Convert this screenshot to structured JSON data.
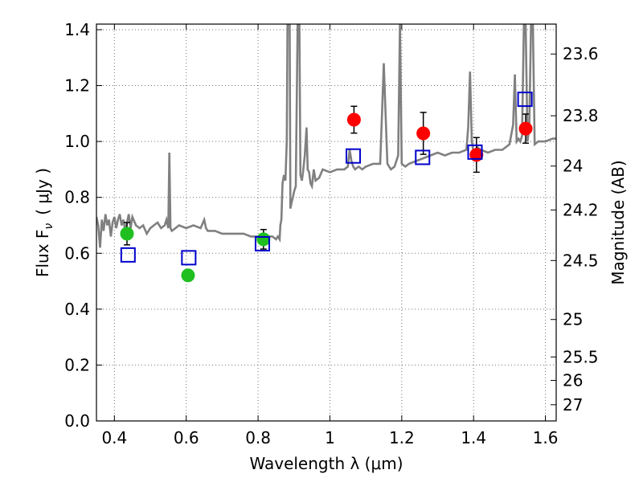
{
  "chart_data": {
    "type": "scatter",
    "xlabel": "Wavelength  λ (μm)",
    "ylabel": "Flux  F",
    "ylabel_subscript": "ν",
    "ylabel_units": "( μJy )",
    "y2label": "Magnitude (AB)",
    "xlim": [
      0.35,
      1.63
    ],
    "ylim": [
      0.0,
      1.42
    ],
    "x_ticks": [
      0.4,
      0.6,
      0.8,
      1.0,
      1.2,
      1.4,
      1.6
    ],
    "x_tick_labels": [
      "0.4",
      "0.6",
      "0.8",
      "1",
      "1.2",
      "1.4",
      "1.6"
    ],
    "y_ticks": [
      0.0,
      0.2,
      0.4,
      0.6,
      0.8,
      1.0,
      1.2,
      1.4
    ],
    "y_tick_labels": [
      "0.0",
      "0.2",
      "0.4",
      "0.6",
      "0.8",
      "1.0",
      "1.2",
      "1.4"
    ],
    "y2_ticks": [
      {
        "label": "23.6",
        "flux": 1.313
      },
      {
        "label": "23.8",
        "flux": 1.092
      },
      {
        "label": "24",
        "flux": 0.912
      },
      {
        "label": "24.2",
        "flux": 0.755
      },
      {
        "label": "24.5",
        "flux": 0.574
      },
      {
        "label": "25",
        "flux": 0.363
      },
      {
        "label": "25.5",
        "flux": 0.229
      },
      {
        "label": "26",
        "flux": 0.145
      },
      {
        "label": "27",
        "flux": 0.058
      }
    ],
    "grid": true,
    "colors": {
      "model_line": "#808080",
      "green_points": "#1fbf1f",
      "red_points": "#ff0000",
      "model_squares": "#0000cc",
      "error_bars": "#000000"
    },
    "model_spectrum": {
      "x": [
        0.35,
        0.355,
        0.36,
        0.365,
        0.37,
        0.375,
        0.38,
        0.385,
        0.39,
        0.395,
        0.4,
        0.405,
        0.41,
        0.415,
        0.42,
        0.425,
        0.43,
        0.435,
        0.44,
        0.445,
        0.45,
        0.46,
        0.47,
        0.48,
        0.49,
        0.5,
        0.51,
        0.52,
        0.53,
        0.54,
        0.545,
        0.55,
        0.553,
        0.556,
        0.56,
        0.57,
        0.58,
        0.6,
        0.62,
        0.64,
        0.65,
        0.655,
        0.66,
        0.68,
        0.7,
        0.72,
        0.74,
        0.76,
        0.78,
        0.8,
        0.82,
        0.83,
        0.84,
        0.85,
        0.855,
        0.86,
        0.862,
        0.865,
        0.868,
        0.872,
        0.876,
        0.88,
        0.882,
        0.885,
        0.888,
        0.89,
        0.893,
        0.897,
        0.9,
        0.905,
        0.91,
        0.915,
        0.918,
        0.922,
        0.925,
        0.93,
        0.935,
        0.938,
        0.942,
        0.946,
        0.95,
        0.955,
        0.96,
        0.97,
        0.98,
        1.0,
        1.02,
        1.04,
        1.05,
        1.055,
        1.06,
        1.065,
        1.07,
        1.08,
        1.09,
        1.1,
        1.12,
        1.14,
        1.145,
        1.15,
        1.155,
        1.16,
        1.17,
        1.18,
        1.185,
        1.19,
        1.195,
        1.2,
        1.21,
        1.22,
        1.24,
        1.26,
        1.28,
        1.3,
        1.32,
        1.34,
        1.36,
        1.38,
        1.385,
        1.39,
        1.395,
        1.4,
        1.41,
        1.42,
        1.44,
        1.46,
        1.48,
        1.5,
        1.51,
        1.515,
        1.52,
        1.525,
        1.53,
        1.535,
        1.54,
        1.545,
        1.55,
        1.555,
        1.56,
        1.565,
        1.57,
        1.58,
        1.6,
        1.62,
        1.63
      ],
      "y": [
        0.73,
        0.7,
        0.62,
        0.72,
        0.68,
        0.74,
        0.7,
        0.72,
        0.66,
        0.71,
        0.73,
        0.69,
        0.72,
        0.74,
        0.7,
        0.72,
        0.68,
        0.71,
        0.74,
        0.69,
        0.73,
        0.7,
        0.69,
        0.7,
        0.67,
        0.69,
        0.7,
        0.71,
        0.69,
        0.7,
        0.72,
        0.69,
        0.96,
        0.69,
        0.68,
        0.69,
        0.7,
        0.69,
        0.7,
        0.69,
        0.72,
        0.69,
        0.68,
        0.68,
        0.67,
        0.67,
        0.67,
        0.67,
        0.66,
        0.66,
        0.66,
        0.66,
        0.66,
        0.65,
        0.66,
        0.65,
        0.7,
        0.72,
        0.85,
        0.88,
        0.86,
        1.0,
        1.42,
        1.42,
        1.42,
        0.76,
        0.78,
        0.8,
        0.82,
        0.84,
        1.42,
        1.42,
        0.88,
        0.86,
        0.89,
        0.95,
        1.05,
        0.9,
        0.89,
        0.85,
        0.84,
        0.9,
        0.86,
        0.87,
        0.9,
        0.89,
        0.9,
        0.9,
        0.91,
        0.97,
        0.93,
        0.91,
        0.9,
        0.91,
        0.9,
        0.91,
        0.92,
        0.92,
        1.1,
        1.28,
        1.1,
        0.92,
        0.9,
        0.91,
        0.93,
        0.95,
        1.42,
        0.92,
        0.91,
        0.92,
        0.93,
        0.94,
        0.95,
        0.96,
        0.95,
        0.96,
        0.96,
        0.97,
        1.05,
        1.25,
        1.0,
        0.96,
        0.98,
        0.97,
        0.96,
        0.97,
        0.97,
        0.99,
        1.06,
        1.24,
        1.0,
        1.01,
        1.0,
        1.02,
        1.42,
        1.42,
        1.0,
        1.05,
        1.42,
        1.42,
        0.99,
        1.0,
        1.0,
        1.01,
        1.01
      ]
    },
    "series": [
      {
        "marker": "circle",
        "color_key": "green_points",
        "x": [
          0.435,
          0.605,
          0.815
        ],
        "y": [
          0.67,
          0.521,
          0.65
        ],
        "yerr": [
          0.04,
          0.02,
          0.035
        ]
      },
      {
        "marker": "circle",
        "color_key": "red_points",
        "x": [
          1.067,
          1.26,
          1.408,
          1.545
        ],
        "y": [
          1.078,
          1.029,
          0.952,
          1.046
        ],
        "yerr": [
          0.048,
          0.075,
          0.062,
          0.052
        ]
      },
      {
        "marker": "open-square",
        "color_key": "model_squares",
        "x": [
          0.438,
          0.607,
          0.812,
          1.065,
          1.258,
          1.404,
          1.543
        ],
        "y": [
          0.594,
          0.584,
          0.634,
          0.948,
          0.943,
          0.962,
          1.151
        ]
      }
    ]
  }
}
